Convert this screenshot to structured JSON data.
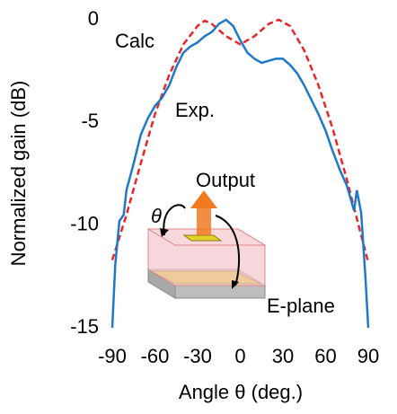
{
  "chart_data": {
    "type": "line",
    "x_label": "Angle θ (deg.)",
    "y_label": "Normalized gain (dB)",
    "xlim": [
      -90,
      90
    ],
    "xticks": [
      -90,
      -60,
      -30,
      0,
      30,
      60,
      90
    ],
    "ylim": [
      -15,
      0
    ],
    "yticks": [
      0,
      -5,
      -10,
      -15
    ],
    "series": [
      {
        "name": "Calc",
        "color": "#e8262a",
        "dash": true,
        "x": [
          -90,
          -80,
          -70,
          -60,
          -50,
          -40,
          -30,
          -25,
          -20,
          -10,
          0,
          10,
          20,
          27,
          35,
          45,
          55,
          65,
          75,
          85,
          90
        ],
        "values": [
          -11.7,
          -9.5,
          -7,
          -4.6,
          -2.7,
          -1.2,
          -0.3,
          -0.05,
          -0.2,
          -0.8,
          -1.2,
          -0.8,
          -0.2,
          0,
          -0.3,
          -1.5,
          -3.2,
          -5.3,
          -7.8,
          -10.5,
          -11.8
        ]
      },
      {
        "name": "Exp.",
        "color": "#1f78c8",
        "dash": false,
        "x": [
          -90,
          -88,
          -85,
          -82,
          -80,
          -75,
          -70,
          -65,
          -60,
          -55,
          -50,
          -45,
          -40,
          -35,
          -30,
          -25,
          -20,
          -15,
          -10,
          -5,
          0,
          5,
          10,
          15,
          20,
          25,
          30,
          35,
          40,
          45,
          50,
          55,
          60,
          65,
          70,
          75,
          80,
          82,
          85,
          88,
          90
        ],
        "values": [
          -15,
          -12,
          -9.8,
          -9.5,
          -8.3,
          -7,
          -5.6,
          -4.8,
          -4.2,
          -3.8,
          -3.2,
          -2.3,
          -1.6,
          -1.3,
          -1.1,
          -0.8,
          -0.6,
          -0.2,
          0,
          -0.3,
          -1,
          -1.6,
          -1.9,
          -2.1,
          -2,
          -1.9,
          -1.9,
          -2.2,
          -2.6,
          -3.2,
          -3.9,
          -4.6,
          -5.4,
          -6.4,
          -7.3,
          -8.1,
          -9.3,
          -8.3,
          -9.4,
          -12.5,
          -15
        ]
      }
    ],
    "annotations": [
      {
        "text": "Output",
        "color": "#f07a20"
      },
      {
        "text": "θ",
        "color": "#000000"
      },
      {
        "text": "E-plane",
        "color": "#000000"
      }
    ]
  }
}
